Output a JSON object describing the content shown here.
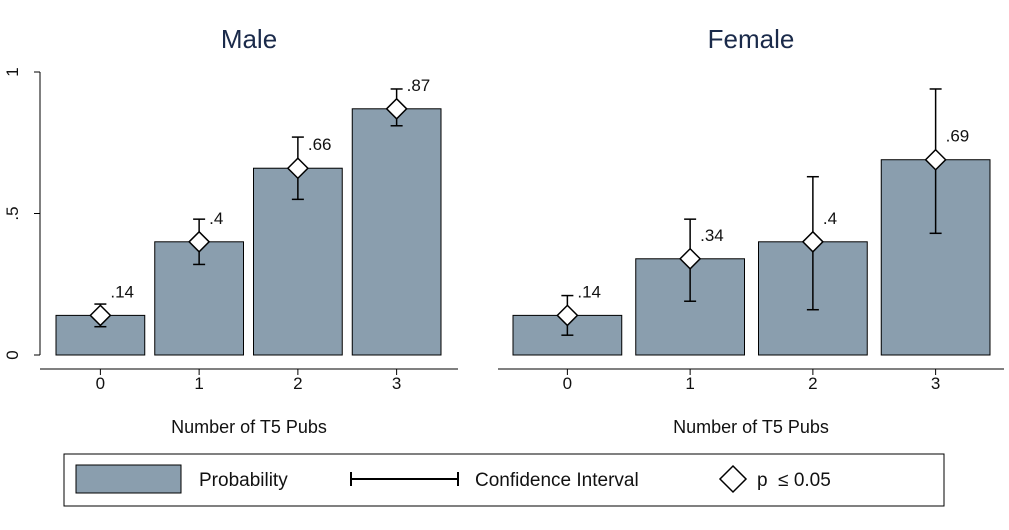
{
  "chart_data": {
    "type": "bar",
    "ylim": [
      0,
      1
    ],
    "yticks": [
      "0",
      ".5",
      "1"
    ],
    "grid": false,
    "legend_position": "bottom",
    "bar_color": "#8a9eae",
    "panels": [
      {
        "title": "Male",
        "xlabel": "Number of T5 Pubs",
        "categories": [
          "0",
          "1",
          "2",
          "3"
        ],
        "values": [
          0.14,
          0.4,
          0.66,
          0.87
        ],
        "value_labels": [
          ".14",
          ".4",
          ".66",
          ".87"
        ],
        "ci_low": [
          0.1,
          0.32,
          0.55,
          0.81
        ],
        "ci_high": [
          0.18,
          0.48,
          0.77,
          0.94
        ]
      },
      {
        "title": "Female",
        "xlabel": "Number of T5 Pubs",
        "categories": [
          "0",
          "1",
          "2",
          "3"
        ],
        "values": [
          0.14,
          0.34,
          0.4,
          0.69
        ],
        "value_labels": [
          ".14",
          ".34",
          ".4",
          ".69"
        ],
        "ci_low": [
          0.07,
          0.19,
          0.16,
          0.43
        ],
        "ci_high": [
          0.21,
          0.48,
          0.63,
          0.94
        ]
      }
    ],
    "legend": {
      "items": [
        "Probability",
        "Confidence Interval",
        "p  ≤ 0.05"
      ]
    }
  }
}
